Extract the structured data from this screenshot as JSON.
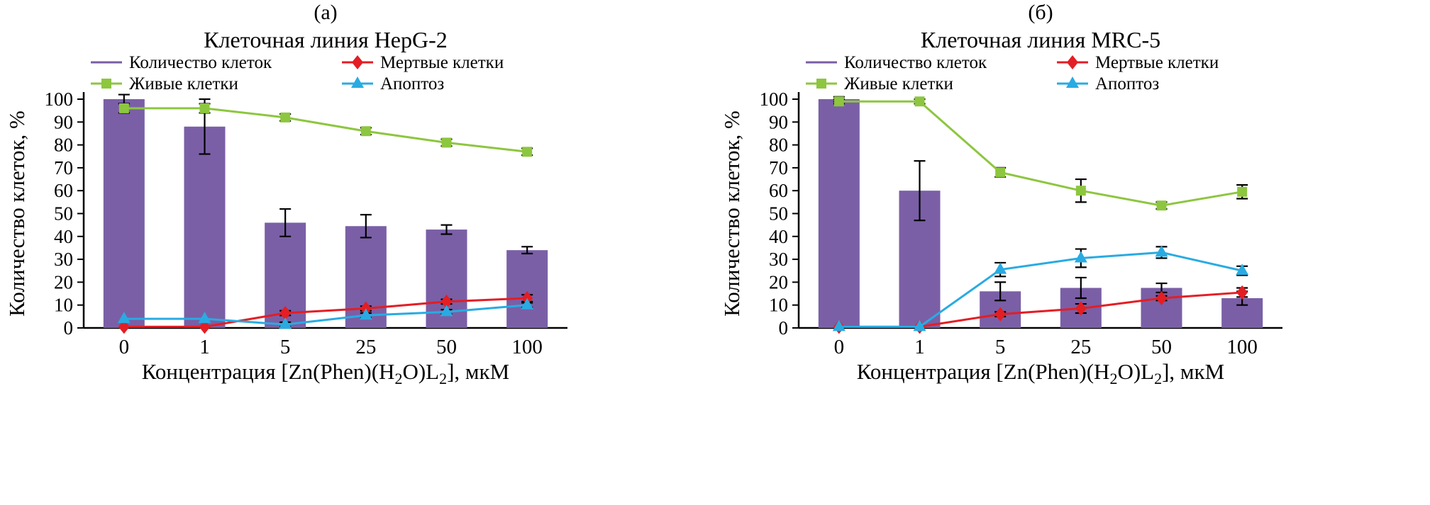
{
  "figure": {
    "background": "#ffffff",
    "axis_color": "#000000"
  },
  "chart_data": [
    {
      "type": "bar",
      "panel_label": "(а)",
      "title": "Клеточная линия HepG-2",
      "categories": [
        "0",
        "1",
        "5",
        "25",
        "50",
        "100"
      ],
      "xlabel": "Концентрация [Zn(Phen)(H₂O)L₂], мкМ",
      "xlabel_parts": [
        {
          "text": "Концентрация [Zn(Phen)(H",
          "sub": false
        },
        {
          "text": "2",
          "sub": true
        },
        {
          "text": "O)L",
          "sub": false
        },
        {
          "text": "2",
          "sub": true
        },
        {
          "text": "], мкМ",
          "sub": false
        }
      ],
      "ylabel": "Количество клеток, %",
      "ylim": [
        0,
        100
      ],
      "ytick_step": 10,
      "grid": false,
      "legend_position": "top",
      "series": [
        {
          "name": "Количество клеток",
          "type": "bar",
          "marker": "none",
          "color": "#7a5fa6",
          "values": [
            100,
            88,
            46,
            44.5,
            43,
            34
          ],
          "errors": [
            2,
            12,
            6,
            5,
            2,
            1.5
          ]
        },
        {
          "name": "Живые клетки",
          "type": "line",
          "marker": "square",
          "color": "#8dc63f",
          "values": [
            96,
            96,
            92,
            86,
            81,
            77
          ],
          "errors": [
            2,
            2,
            1.5,
            1.5,
            1.5,
            1.5
          ]
        },
        {
          "name": "Мертвые клетки",
          "type": "line",
          "marker": "diamond",
          "color": "#e31e24",
          "values": [
            0.5,
            0.5,
            6.5,
            8.5,
            11.5,
            13
          ],
          "errors": [
            0,
            0,
            1,
            1,
            1,
            1.5
          ]
        },
        {
          "name": "Апоптоз",
          "type": "line",
          "marker": "triangle",
          "color": "#29abe2",
          "values": [
            4,
            4,
            1.5,
            5.5,
            7,
            10
          ],
          "errors": [
            0,
            0,
            1,
            1,
            1,
            1
          ]
        }
      ]
    },
    {
      "type": "bar",
      "panel_label": "(б)",
      "title": "Клеточная линия MRC-5",
      "categories": [
        "0",
        "1",
        "5",
        "25",
        "50",
        "100"
      ],
      "xlabel": "Концентрация [Zn(Phen)(H₂O)L₂], мкМ",
      "xlabel_parts": [
        {
          "text": "Концентрация [Zn(Phen)(H",
          "sub": false
        },
        {
          "text": "2",
          "sub": true
        },
        {
          "text": "O)L",
          "sub": false
        },
        {
          "text": "2",
          "sub": true
        },
        {
          "text": "], мкМ",
          "sub": false
        }
      ],
      "ylabel": "Количество клеток, %",
      "ylim": [
        0,
        100
      ],
      "ytick_step": 10,
      "grid": false,
      "legend_position": "top",
      "series": [
        {
          "name": "Количество клеток",
          "type": "bar",
          "marker": "none",
          "color": "#7a5fa6",
          "values": [
            100,
            60,
            16,
            17.5,
            17.5,
            13
          ],
          "errors": [
            1,
            13,
            4,
            4.5,
            2,
            3
          ]
        },
        {
          "name": "Живые клетки",
          "type": "line",
          "marker": "square",
          "color": "#8dc63f",
          "values": [
            99,
            99,
            68,
            60,
            53.5,
            59.5
          ],
          "errors": [
            1,
            1,
            2,
            5,
            1.5,
            3
          ]
        },
        {
          "name": "Мертвые клетки",
          "type": "line",
          "marker": "diamond",
          "color": "#e31e24",
          "values": [
            0.5,
            0.5,
            6,
            8.5,
            13,
            15.5
          ],
          "errors": [
            0,
            0,
            1,
            2,
            1,
            2
          ]
        },
        {
          "name": "Апоптоз",
          "type": "line",
          "marker": "triangle",
          "color": "#29abe2",
          "values": [
            0.5,
            0.5,
            25.5,
            30.5,
            33,
            25
          ],
          "errors": [
            0,
            0,
            3,
            4,
            2.5,
            2
          ]
        }
      ]
    }
  ]
}
